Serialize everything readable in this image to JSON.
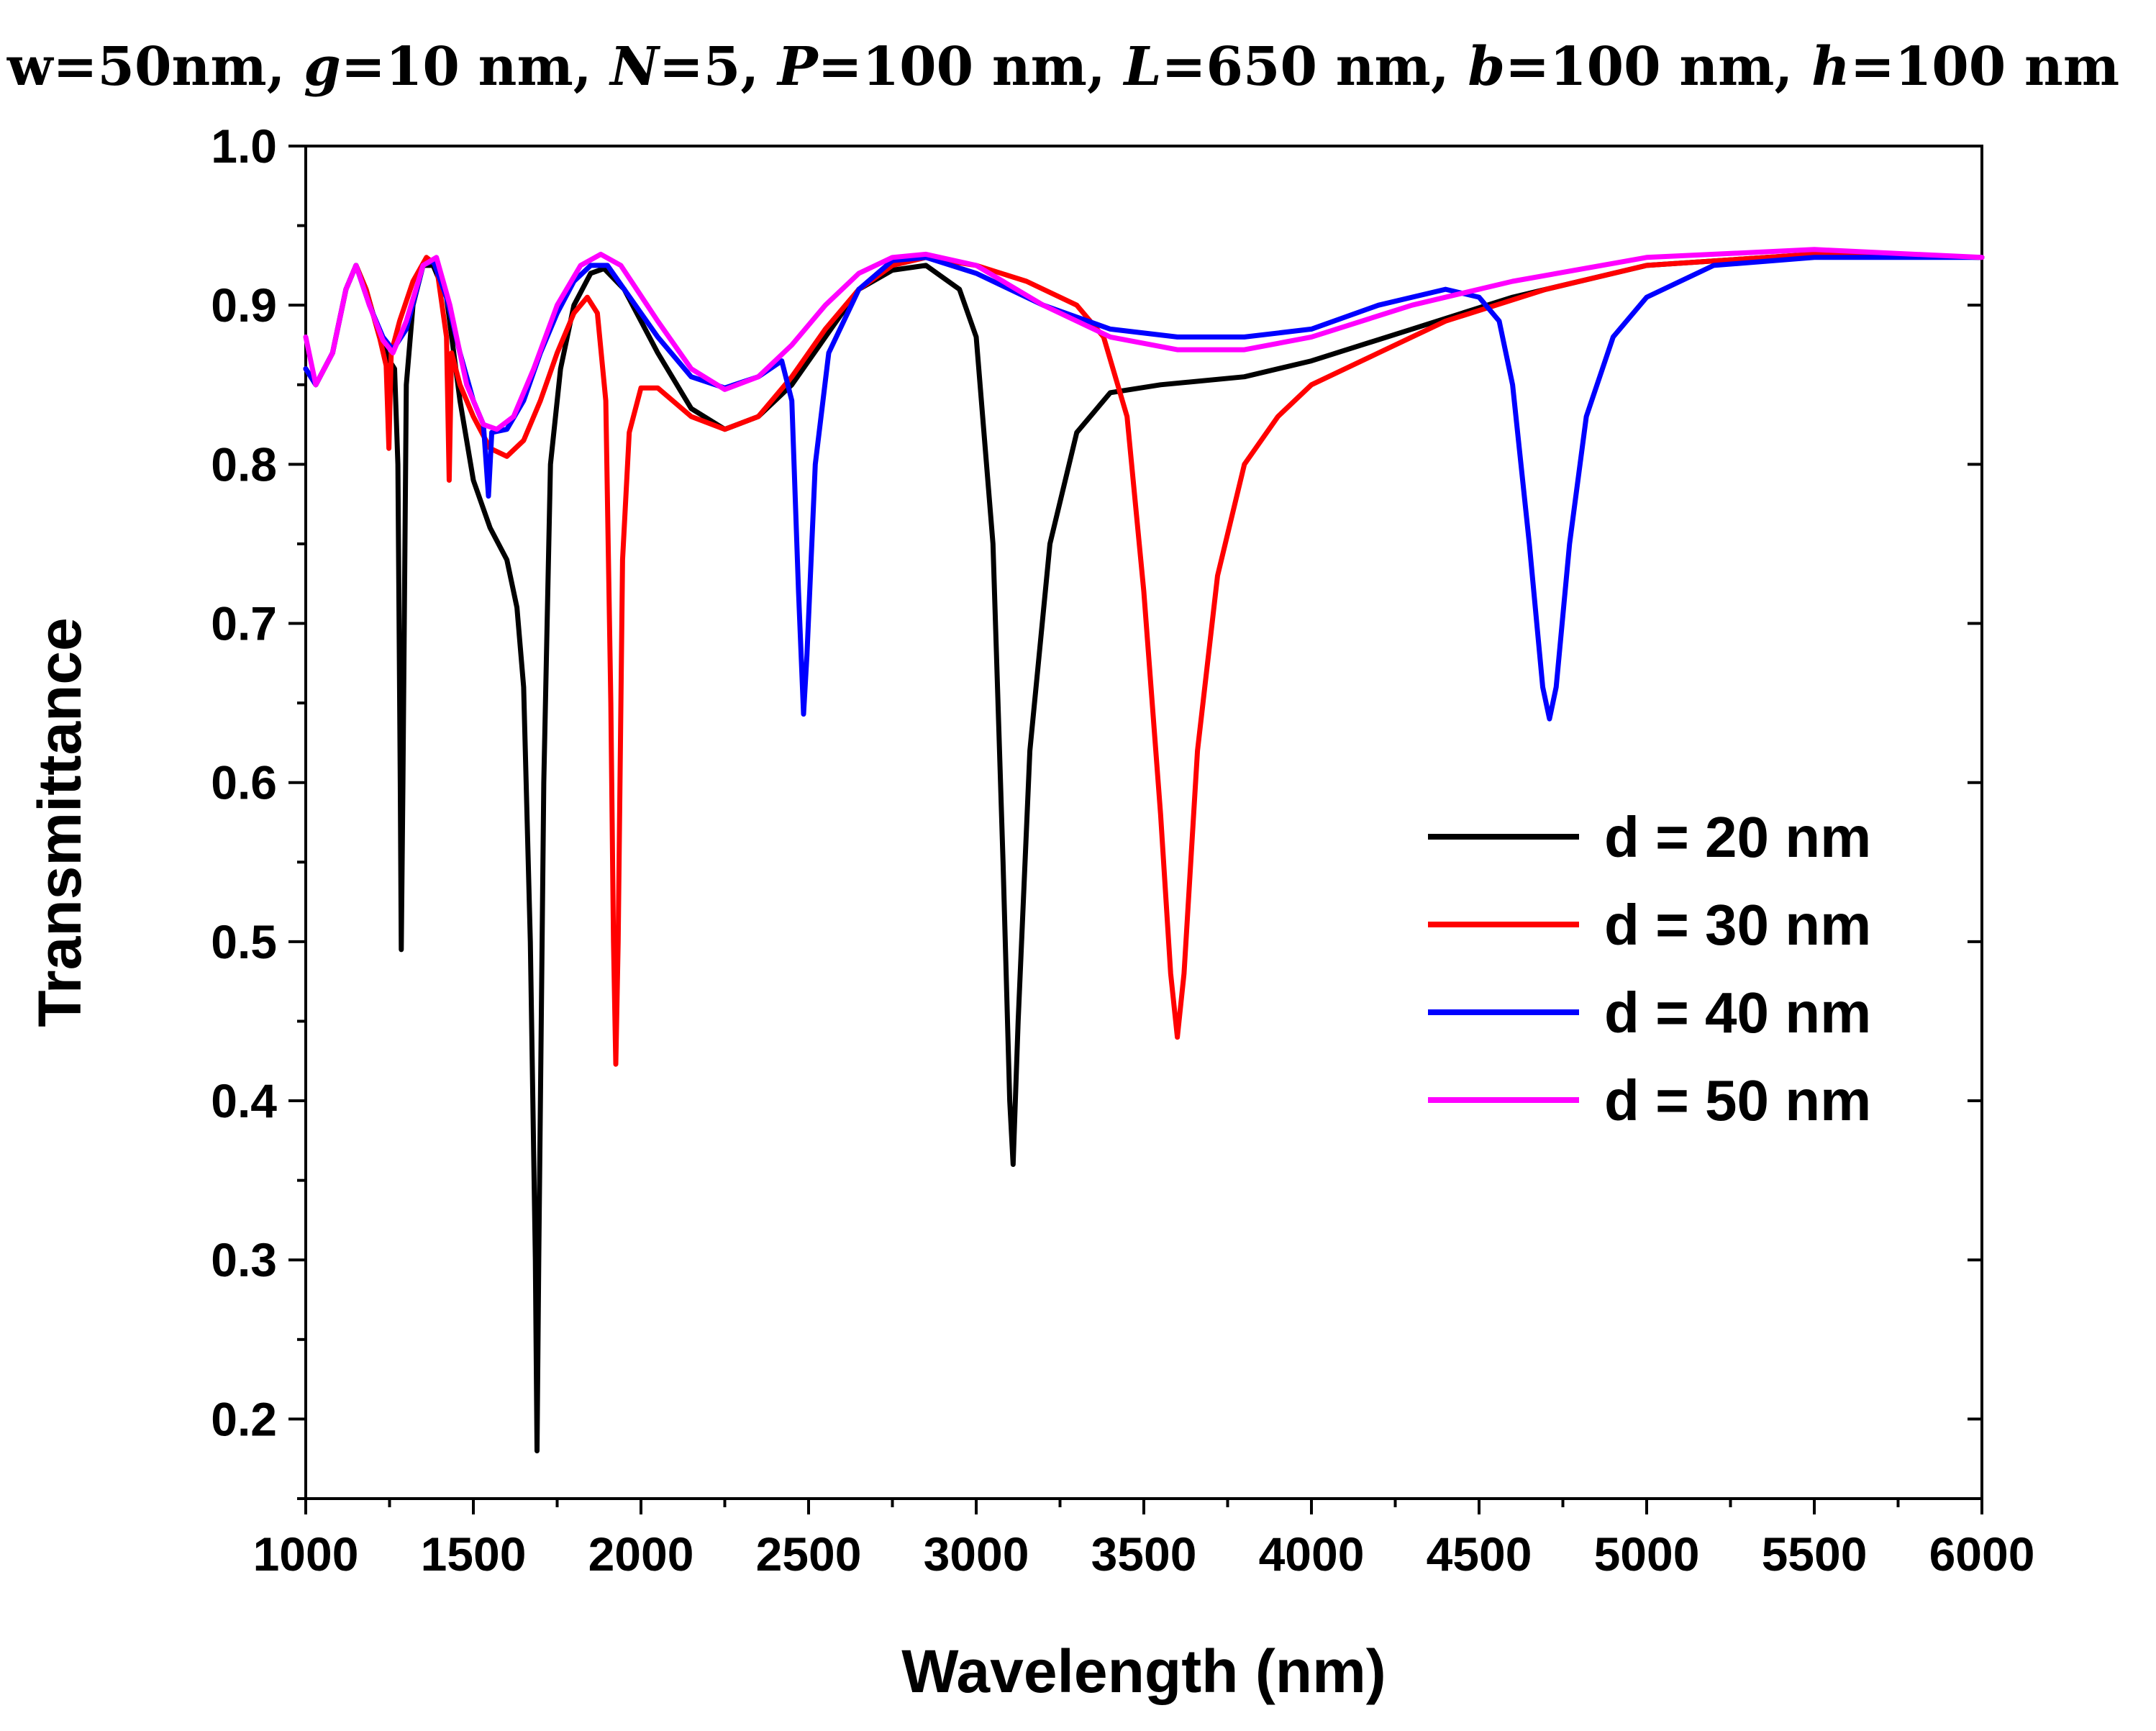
{
  "chart_data": {
    "type": "line",
    "title_parts": [
      {
        "text": "w=50nm, ",
        "italic": false
      },
      {
        "text": "g",
        "italic": true
      },
      {
        "text": "=10 nm, ",
        "italic": false
      },
      {
        "text": "N",
        "italic": true
      },
      {
        "text": "=5, ",
        "italic": false
      },
      {
        "text": "P",
        "italic": true
      },
      {
        "text": "=100 nm, ",
        "italic": false
      },
      {
        "text": "L",
        "italic": true
      },
      {
        "text": "=650 nm, ",
        "italic": false
      },
      {
        "text": "b",
        "italic": true
      },
      {
        "text": "=100 nm, ",
        "italic": false
      },
      {
        "text": "h",
        "italic": true
      },
      {
        "text": "=100 nm",
        "italic": false
      }
    ],
    "xlabel": "Wavelength (nm)",
    "ylabel": "Transmittance",
    "xlim": [
      1000,
      6000
    ],
    "ylim": [
      0.15,
      1.0
    ],
    "xticks": [
      1000,
      1500,
      2000,
      2500,
      3000,
      3500,
      4000,
      4500,
      5000,
      5500,
      6000
    ],
    "xtick_labels": [
      "1000",
      "1500",
      "2000",
      "2500",
      "3000",
      "3500",
      "4000",
      "4500",
      "5000",
      "5500",
      "6000"
    ],
    "yticks": [
      0.2,
      0.3,
      0.4,
      0.5,
      0.6,
      0.7,
      0.8,
      0.9,
      1.0
    ],
    "ytick_labels": [
      "0.2",
      "0.3",
      "0.4",
      "0.5",
      "0.6",
      "0.7",
      "0.8",
      "0.9",
      "1.0"
    ],
    "y_minor_step": 0.05,
    "grid": false,
    "legend_position": "center-right",
    "series": [
      {
        "name": "d = 20 nm",
        "color": "#000000",
        "points": [
          [
            1000,
            0.86
          ],
          [
            1030,
            0.85
          ],
          [
            1080,
            0.87
          ],
          [
            1120,
            0.91
          ],
          [
            1150,
            0.925
          ],
          [
            1180,
            0.91
          ],
          [
            1220,
            0.88
          ],
          [
            1250,
            0.865
          ],
          [
            1265,
            0.86
          ],
          [
            1275,
            0.8
          ],
          [
            1282,
            0.6
          ],
          [
            1285,
            0.495
          ],
          [
            1290,
            0.6
          ],
          [
            1300,
            0.85
          ],
          [
            1320,
            0.9
          ],
          [
            1350,
            0.925
          ],
          [
            1380,
            0.925
          ],
          [
            1420,
            0.905
          ],
          [
            1460,
            0.84
          ],
          [
            1500,
            0.79
          ],
          [
            1550,
            0.76
          ],
          [
            1600,
            0.74
          ],
          [
            1630,
            0.71
          ],
          [
            1650,
            0.66
          ],
          [
            1670,
            0.5
          ],
          [
            1685,
            0.3
          ],
          [
            1690,
            0.18
          ],
          [
            1695,
            0.3
          ],
          [
            1710,
            0.6
          ],
          [
            1730,
            0.8
          ],
          [
            1760,
            0.86
          ],
          [
            1800,
            0.9
          ],
          [
            1850,
            0.92
          ],
          [
            1890,
            0.923
          ],
          [
            1950,
            0.91
          ],
          [
            2050,
            0.87
          ],
          [
            2150,
            0.835
          ],
          [
            2250,
            0.822
          ],
          [
            2350,
            0.83
          ],
          [
            2450,
            0.85
          ],
          [
            2550,
            0.88
          ],
          [
            2650,
            0.91
          ],
          [
            2750,
            0.922
          ],
          [
            2850,
            0.925
          ],
          [
            2950,
            0.91
          ],
          [
            3000,
            0.88
          ],
          [
            3050,
            0.75
          ],
          [
            3080,
            0.55
          ],
          [
            3100,
            0.4
          ],
          [
            3110,
            0.36
          ],
          [
            3125,
            0.45
          ],
          [
            3160,
            0.62
          ],
          [
            3220,
            0.75
          ],
          [
            3300,
            0.82
          ],
          [
            3400,
            0.845
          ],
          [
            3550,
            0.85
          ],
          [
            3800,
            0.855
          ],
          [
            4000,
            0.865
          ],
          [
            4300,
            0.885
          ],
          [
            4600,
            0.905
          ],
          [
            5000,
            0.925
          ],
          [
            5500,
            0.932
          ],
          [
            6000,
            0.93
          ]
        ]
      },
      {
        "name": "d = 30 nm",
        "color": "#ff0000",
        "points": [
          [
            1000,
            0.86
          ],
          [
            1030,
            0.85
          ],
          [
            1080,
            0.87
          ],
          [
            1120,
            0.91
          ],
          [
            1150,
            0.925
          ],
          [
            1180,
            0.91
          ],
          [
            1220,
            0.88
          ],
          [
            1240,
            0.862
          ],
          [
            1248,
            0.81
          ],
          [
            1255,
            0.87
          ],
          [
            1280,
            0.89
          ],
          [
            1320,
            0.915
          ],
          [
            1360,
            0.93
          ],
          [
            1390,
            0.925
          ],
          [
            1420,
            0.88
          ],
          [
            1428,
            0.79
          ],
          [
            1435,
            0.87
          ],
          [
            1460,
            0.85
          ],
          [
            1500,
            0.83
          ],
          [
            1550,
            0.81
          ],
          [
            1600,
            0.805
          ],
          [
            1650,
            0.815
          ],
          [
            1700,
            0.84
          ],
          [
            1750,
            0.87
          ],
          [
            1800,
            0.895
          ],
          [
            1840,
            0.905
          ],
          [
            1870,
            0.895
          ],
          [
            1895,
            0.84
          ],
          [
            1910,
            0.65
          ],
          [
            1918,
            0.5
          ],
          [
            1925,
            0.423
          ],
          [
            1932,
            0.5
          ],
          [
            1945,
            0.74
          ],
          [
            1965,
            0.82
          ],
          [
            2000,
            0.848
          ],
          [
            2050,
            0.848
          ],
          [
            2150,
            0.83
          ],
          [
            2250,
            0.822
          ],
          [
            2350,
            0.83
          ],
          [
            2450,
            0.855
          ],
          [
            2550,
            0.885
          ],
          [
            2650,
            0.91
          ],
          [
            2750,
            0.925
          ],
          [
            2850,
            0.93
          ],
          [
            3000,
            0.925
          ],
          [
            3150,
            0.915
          ],
          [
            3300,
            0.9
          ],
          [
            3380,
            0.88
          ],
          [
            3450,
            0.83
          ],
          [
            3500,
            0.72
          ],
          [
            3550,
            0.58
          ],
          [
            3580,
            0.48
          ],
          [
            3600,
            0.44
          ],
          [
            3620,
            0.48
          ],
          [
            3660,
            0.62
          ],
          [
            3720,
            0.73
          ],
          [
            3800,
            0.8
          ],
          [
            3900,
            0.83
          ],
          [
            4000,
            0.85
          ],
          [
            4200,
            0.87
          ],
          [
            4400,
            0.89
          ],
          [
            4700,
            0.91
          ],
          [
            5000,
            0.925
          ],
          [
            5500,
            0.932
          ],
          [
            6000,
            0.93
          ]
        ]
      },
      {
        "name": "d = 40 nm",
        "color": "#0000ff",
        "points": [
          [
            1000,
            0.86
          ],
          [
            1030,
            0.85
          ],
          [
            1080,
            0.87
          ],
          [
            1120,
            0.91
          ],
          [
            1150,
            0.925
          ],
          [
            1190,
            0.9
          ],
          [
            1230,
            0.88
          ],
          [
            1260,
            0.872
          ],
          [
            1300,
            0.885
          ],
          [
            1350,
            0.925
          ],
          [
            1380,
            0.928
          ],
          [
            1420,
            0.905
          ],
          [
            1460,
            0.87
          ],
          [
            1500,
            0.84
          ],
          [
            1530,
            0.825
          ],
          [
            1545,
            0.78
          ],
          [
            1555,
            0.82
          ],
          [
            1600,
            0.822
          ],
          [
            1650,
            0.84
          ],
          [
            1700,
            0.87
          ],
          [
            1750,
            0.895
          ],
          [
            1800,
            0.915
          ],
          [
            1850,
            0.925
          ],
          [
            1900,
            0.925
          ],
          [
            1950,
            0.91
          ],
          [
            2050,
            0.88
          ],
          [
            2150,
            0.855
          ],
          [
            2250,
            0.848
          ],
          [
            2350,
            0.855
          ],
          [
            2420,
            0.865
          ],
          [
            2450,
            0.84
          ],
          [
            2470,
            0.72
          ],
          [
            2485,
            0.643
          ],
          [
            2495,
            0.68
          ],
          [
            2520,
            0.8
          ],
          [
            2560,
            0.87
          ],
          [
            2650,
            0.91
          ],
          [
            2750,
            0.928
          ],
          [
            2850,
            0.93
          ],
          [
            3000,
            0.92
          ],
          [
            3200,
            0.9
          ],
          [
            3400,
            0.885
          ],
          [
            3600,
            0.88
          ],
          [
            3800,
            0.88
          ],
          [
            4000,
            0.885
          ],
          [
            4200,
            0.9
          ],
          [
            4400,
            0.91
          ],
          [
            4500,
            0.905
          ],
          [
            4560,
            0.89
          ],
          [
            4600,
            0.85
          ],
          [
            4650,
            0.75
          ],
          [
            4690,
            0.66
          ],
          [
            4710,
            0.64
          ],
          [
            4730,
            0.66
          ],
          [
            4770,
            0.75
          ],
          [
            4820,
            0.83
          ],
          [
            4900,
            0.88
          ],
          [
            5000,
            0.905
          ],
          [
            5200,
            0.925
          ],
          [
            5500,
            0.93
          ],
          [
            6000,
            0.93
          ]
        ]
      },
      {
        "name": "d = 50 nm",
        "color": "#ff00ff",
        "points": [
          [
            1000,
            0.88
          ],
          [
            1030,
            0.85
          ],
          [
            1080,
            0.87
          ],
          [
            1120,
            0.91
          ],
          [
            1150,
            0.925
          ],
          [
            1190,
            0.9
          ],
          [
            1230,
            0.878
          ],
          [
            1260,
            0.87
          ],
          [
            1300,
            0.89
          ],
          [
            1350,
            0.925
          ],
          [
            1390,
            0.93
          ],
          [
            1430,
            0.9
          ],
          [
            1480,
            0.85
          ],
          [
            1530,
            0.825
          ],
          [
            1570,
            0.822
          ],
          [
            1620,
            0.83
          ],
          [
            1680,
            0.86
          ],
          [
            1750,
            0.9
          ],
          [
            1820,
            0.925
          ],
          [
            1880,
            0.932
          ],
          [
            1940,
            0.925
          ],
          [
            2050,
            0.89
          ],
          [
            2150,
            0.86
          ],
          [
            2250,
            0.847
          ],
          [
            2350,
            0.855
          ],
          [
            2450,
            0.875
          ],
          [
            2550,
            0.9
          ],
          [
            2650,
            0.92
          ],
          [
            2750,
            0.93
          ],
          [
            2850,
            0.932
          ],
          [
            3000,
            0.925
          ],
          [
            3200,
            0.9
          ],
          [
            3400,
            0.88
          ],
          [
            3600,
            0.872
          ],
          [
            3800,
            0.872
          ],
          [
            4000,
            0.88
          ],
          [
            4300,
            0.9
          ],
          [
            4600,
            0.915
          ],
          [
            5000,
            0.93
          ],
          [
            5500,
            0.935
          ],
          [
            6000,
            0.93
          ]
        ]
      }
    ]
  }
}
